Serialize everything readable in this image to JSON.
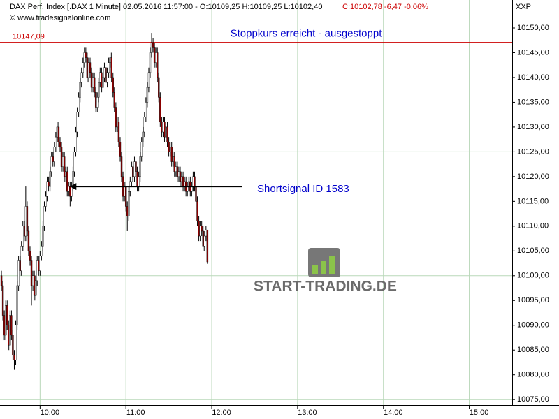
{
  "chart_data": {
    "type": "candlestick",
    "title": "DAX Perf. Index [.DAX  1 Minute] 02.05.2016 11:57:00 - O:10109,25 H:10109,25 L:10102,40",
    "subtitle": "C:10102,78 -6,47 -0,06%",
    "source": "© www.tradesignalonline.com",
    "axis_label": "XXP",
    "watermark": "START-TRADING.DE",
    "up_color": "#ffffff",
    "down_color": "#8b0000",
    "grid_color": "#b9d8b9",
    "xlim": [
      572,
      930
    ],
    "xticks": [
      {
        "value": 600,
        "label": "10:00"
      },
      {
        "value": 660,
        "label": "11:00"
      },
      {
        "value": 720,
        "label": "12:00"
      },
      {
        "value": 780,
        "label": "13:00"
      },
      {
        "value": 840,
        "label": "14:00"
      },
      {
        "value": 900,
        "label": "15:00"
      }
    ],
    "ylim": [
      10073.9,
      10153.1
    ],
    "yticks": [
      {
        "value": 10075,
        "label": "10075,00"
      },
      {
        "value": 10080,
        "label": "10080,00"
      },
      {
        "value": 10085,
        "label": "10085,00"
      },
      {
        "value": 10090,
        "label": "10090,00"
      },
      {
        "value": 10095,
        "label": "10095,00"
      },
      {
        "value": 10100,
        "label": "10100,00"
      },
      {
        "value": 10105,
        "label": "10105,00"
      },
      {
        "value": 10110,
        "label": "10110,00"
      },
      {
        "value": 10115,
        "label": "10115,00"
      },
      {
        "value": 10120,
        "label": "10120,00"
      },
      {
        "value": 10125,
        "label": "10125,00"
      },
      {
        "value": 10130,
        "label": "10130,00"
      },
      {
        "value": 10135,
        "label": "10135,00"
      },
      {
        "value": 10140,
        "label": "10140,00"
      },
      {
        "value": 10145,
        "label": "10145,00"
      },
      {
        "value": 10150,
        "label": "10150,00"
      }
    ],
    "ygrid": [
      10075,
      10100,
      10125
    ],
    "stop": {
      "value": 10147.09,
      "label": "10147,09",
      "text": "Stoppkurs erreicht - ausgestoppt",
      "color": "#cc0000"
    },
    "signal": {
      "value": 10118,
      "x": [
        741,
        621
      ],
      "text": "Shortsignal ID 1583"
    },
    "x": [
      573,
      574,
      575,
      576,
      577,
      578,
      579,
      580,
      581,
      582,
      583,
      584,
      585,
      586,
      587,
      588,
      589,
      590,
      591,
      592,
      593,
      594,
      595,
      596,
      597,
      598,
      599,
      600,
      601,
      602,
      603,
      604,
      605,
      606,
      607,
      608,
      609,
      610,
      611,
      612,
      613,
      614,
      615,
      616,
      617,
      618,
      619,
      620,
      621,
      622,
      623,
      624,
      625,
      626,
      627,
      628,
      629,
      630,
      631,
      632,
      633,
      634,
      635,
      636,
      637,
      638,
      639,
      640,
      641,
      642,
      643,
      644,
      645,
      646,
      647,
      648,
      649,
      650,
      651,
      652,
      653,
      654,
      655,
      656,
      657,
      658,
      659,
      660,
      661,
      662,
      663,
      664,
      665,
      666,
      667,
      668,
      669,
      670,
      671,
      672,
      673,
      674,
      675,
      676,
      677,
      678,
      679,
      680,
      681,
      682,
      683,
      684,
      685,
      686,
      687,
      688,
      689,
      690,
      691,
      692,
      693,
      694,
      695,
      696,
      697,
      698,
      699,
      700,
      701,
      702,
      703,
      704,
      705,
      706,
      707,
      708,
      709,
      710,
      711,
      712,
      713,
      714,
      715,
      716,
      717
    ],
    "ohlc": [
      [
        10100,
        10101,
        10097,
        10098
      ],
      [
        10098,
        10099,
        10091,
        10092
      ],
      [
        10092,
        10093,
        10087,
        10088
      ],
      [
        10088,
        10095,
        10087,
        10094
      ],
      [
        10094,
        10095,
        10089,
        10090
      ],
      [
        10090,
        10091,
        10085,
        10086
      ],
      [
        10086,
        10093,
        10085,
        10092
      ],
      [
        10092,
        10093,
        10087,
        10088
      ],
      [
        10088,
        10089,
        10083,
        10084
      ],
      [
        10084,
        10085,
        10081,
        10083
      ],
      [
        10083,
        10091,
        10082,
        10090
      ],
      [
        10090,
        10099,
        10089,
        10098
      ],
      [
        10098,
        10104,
        10097,
        10103
      ],
      [
        10103,
        10104,
        10100,
        10101
      ],
      [
        10101,
        10107,
        10100,
        10106
      ],
      [
        10106,
        10111,
        10105,
        10110
      ],
      [
        10110,
        10111,
        10107,
        10108
      ],
      [
        10108,
        10118,
        10107,
        10114
      ],
      [
        10114,
        10115,
        10108,
        10109
      ],
      [
        10109,
        10110,
        10104,
        10105
      ],
      [
        10105,
        10106,
        10102,
        10103
      ],
      [
        10103,
        10104,
        10094,
        10098
      ],
      [
        10098,
        10101,
        10097,
        10100
      ],
      [
        10100,
        10101,
        10095,
        10096
      ],
      [
        10096,
        10100,
        10095,
        10099
      ],
      [
        10099,
        10104,
        10098,
        10103
      ],
      [
        10103,
        10104,
        10100,
        10101
      ],
      [
        10101,
        10105,
        10100,
        10104
      ],
      [
        10104,
        10107,
        10103,
        10106
      ],
      [
        10106,
        10111,
        10105,
        10110
      ],
      [
        10110,
        10115,
        10109,
        10114
      ],
      [
        10114,
        10117,
        10113,
        10116
      ],
      [
        10116,
        10120,
        10115,
        10119
      ],
      [
        10119,
        10120,
        10117,
        10118
      ],
      [
        10118,
        10122,
        10117,
        10121
      ],
      [
        10121,
        10125,
        10120,
        10124
      ],
      [
        10124,
        10125,
        10122,
        10123
      ],
      [
        10123,
        10127,
        10122,
        10126
      ],
      [
        10126,
        10129,
        10125,
        10128
      ],
      [
        10128,
        10131,
        10127,
        10130
      ],
      [
        10130,
        10131,
        10126,
        10127
      ],
      [
        10127,
        10128,
        10125,
        10126
      ],
      [
        10126,
        10127,
        10121,
        10122
      ],
      [
        10122,
        10125,
        10121,
        10124
      ],
      [
        10124,
        10125,
        10119,
        10120
      ],
      [
        10120,
        10122,
        10119,
        10121
      ],
      [
        10121,
        10122,
        10116,
        10117
      ],
      [
        10117,
        10119,
        10116,
        10118
      ],
      [
        10118,
        10119,
        10114,
        10116
      ],
      [
        10116,
        10119,
        10115,
        10118
      ],
      [
        10118,
        10122,
        10117,
        10121
      ],
      [
        10121,
        10126,
        10120,
        10125
      ],
      [
        10125,
        10130,
        10124,
        10129
      ],
      [
        10129,
        10134,
        10128,
        10133
      ],
      [
        10133,
        10137,
        10132,
        10136
      ],
      [
        10136,
        10140,
        10135,
        10139
      ],
      [
        10139,
        10142,
        10138,
        10141
      ],
      [
        10141,
        10144,
        10140,
        10143
      ],
      [
        10143,
        10146,
        10142,
        10145
      ],
      [
        10145,
        10146,
        10143,
        10144
      ],
      [
        10144,
        10145,
        10139,
        10140
      ],
      [
        10140,
        10144,
        10139,
        10143
      ],
      [
        10143,
        10144,
        10140,
        10141
      ],
      [
        10141,
        10142,
        10137,
        10138
      ],
      [
        10138,
        10141,
        10137,
        10140
      ],
      [
        10140,
        10141,
        10136,
        10137
      ],
      [
        10137,
        10138,
        10133,
        10134
      ],
      [
        10134,
        10137,
        10133,
        10136
      ],
      [
        10136,
        10140,
        10135,
        10139
      ],
      [
        10139,
        10142,
        10138,
        10141
      ],
      [
        10141,
        10142,
        10137,
        10138
      ],
      [
        10138,
        10141,
        10137,
        10140
      ],
      [
        10140,
        10143,
        10139,
        10142
      ],
      [
        10142,
        10143,
        10138,
        10139
      ],
      [
        10139,
        10142,
        10138,
        10141
      ],
      [
        10141,
        10144,
        10140,
        10143
      ],
      [
        10143,
        10145,
        10142,
        10144
      ],
      [
        10144,
        10145,
        10139,
        10140
      ],
      [
        10140,
        10141,
        10136,
        10137
      ],
      [
        10137,
        10138,
        10133,
        10134
      ],
      [
        10134,
        10135,
        10129,
        10130
      ],
      [
        10130,
        10132,
        10129,
        10131
      ],
      [
        10131,
        10132,
        10126,
        10127
      ],
      [
        10127,
        10128,
        10123,
        10124
      ],
      [
        10124,
        10125,
        10119,
        10120
      ],
      [
        10120,
        10121,
        10115,
        10116
      ],
      [
        10116,
        10119,
        10115,
        10118
      ],
      [
        10118,
        10119,
        10113,
        10114
      ],
      [
        10114,
        10115,
        10109,
        10112
      ],
      [
        10112,
        10118,
        10111,
        10117
      ],
      [
        10117,
        10120,
        10116,
        10119
      ],
      [
        10119,
        10123,
        10118,
        10122
      ],
      [
        10122,
        10123,
        10119,
        10120
      ],
      [
        10120,
        10124,
        10119,
        10123
      ],
      [
        10123,
        10124,
        10120,
        10121
      ],
      [
        10121,
        10122,
        10117,
        10118
      ],
      [
        10118,
        10121,
        10117,
        10120
      ],
      [
        10120,
        10125,
        10119,
        10124
      ],
      [
        10124,
        10128,
        10123,
        10127
      ],
      [
        10127,
        10130,
        10126,
        10129
      ],
      [
        10129,
        10133,
        10128,
        10132
      ],
      [
        10132,
        10136,
        10131,
        10135
      ],
      [
        10135,
        10139,
        10134,
        10138
      ],
      [
        10138,
        10142,
        10137,
        10141
      ],
      [
        10141,
        10146,
        10140,
        10145
      ],
      [
        10145,
        10149,
        10144,
        10147
      ],
      [
        10147,
        10148,
        10145,
        10146
      ],
      [
        10146,
        10147,
        10142,
        10143
      ],
      [
        10143,
        10146,
        10142,
        10145
      ],
      [
        10145,
        10146,
        10139,
        10140
      ],
      [
        10140,
        10141,
        10135,
        10136
      ],
      [
        10136,
        10137,
        10130,
        10131
      ],
      [
        10131,
        10132,
        10128,
        10129
      ],
      [
        10129,
        10132,
        10128,
        10131
      ],
      [
        10131,
        10132,
        10127,
        10128
      ],
      [
        10128,
        10131,
        10127,
        10130
      ],
      [
        10130,
        10131,
        10126,
        10127
      ],
      [
        10127,
        10128,
        10124,
        10125
      ],
      [
        10125,
        10127,
        10124,
        10126
      ],
      [
        10126,
        10127,
        10122,
        10123
      ],
      [
        10123,
        10125,
        10122,
        10124
      ],
      [
        10124,
        10125,
        10120,
        10121
      ],
      [
        10121,
        10123,
        10120,
        10122
      ],
      [
        10122,
        10123,
        10119,
        10120
      ],
      [
        10120,
        10122,
        10119,
        10121
      ],
      [
        10121,
        10122,
        10118,
        10119
      ],
      [
        10119,
        10121,
        10118,
        10120
      ],
      [
        10120,
        10121,
        10117,
        10118
      ],
      [
        10118,
        10120,
        10117,
        10119
      ],
      [
        10119,
        10120,
        10116,
        10117
      ],
      [
        10117,
        10119,
        10116,
        10118
      ],
      [
        10118,
        10120,
        10117,
        10119
      ],
      [
        10119,
        10120,
        10116,
        10117
      ],
      [
        10117,
        10119,
        10116,
        10118
      ],
      [
        10118,
        10121,
        10117,
        10120
      ],
      [
        10120,
        10121,
        10117,
        10118
      ],
      [
        10118,
        10119,
        10114,
        10115
      ],
      [
        10115,
        10116,
        10110,
        10111
      ],
      [
        10111,
        10112,
        10107,
        10108
      ],
      [
        10108,
        10111,
        10107,
        10110
      ],
      [
        10110,
        10111,
        10108,
        10109
      ],
      [
        10109,
        10110,
        10105,
        10106
      ],
      [
        10106,
        10109,
        10105,
        10108
      ],
      [
        10108,
        10110,
        10107,
        10109.25
      ],
      [
        10109.25,
        10109.25,
        10102.4,
        10102.78
      ]
    ]
  }
}
